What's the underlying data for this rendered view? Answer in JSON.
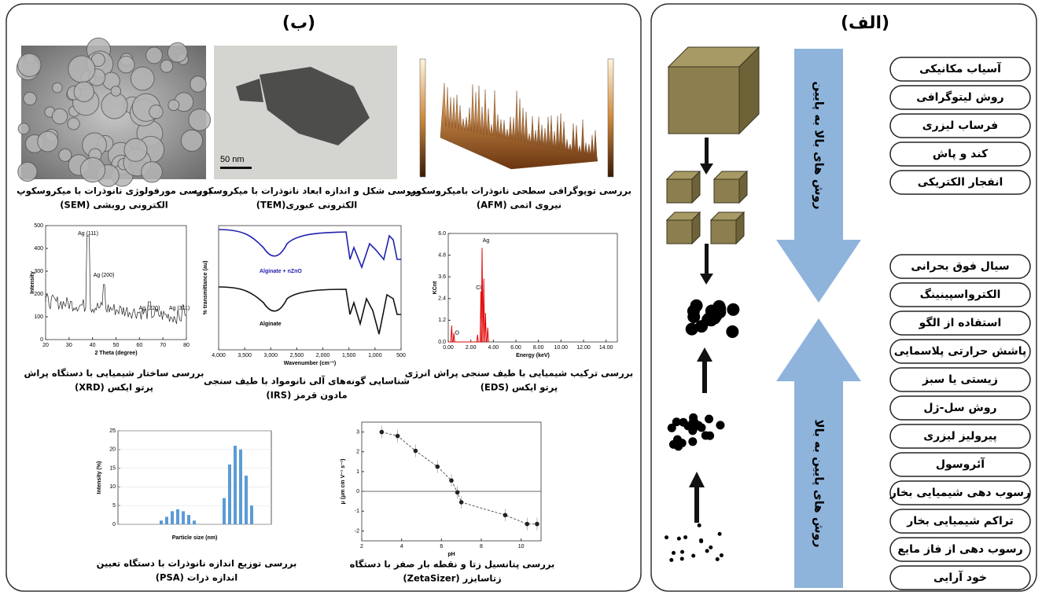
{
  "panel_a": {
    "title": "(الف)",
    "top_down_label": "روش های بالا به پایین",
    "bottom_up_label": "روش های پایین به بالا",
    "top_down_methods": [
      "آسیاب مکانیکی",
      "روش لیتوگرافی",
      "فرساب لیزری",
      "کند و پاش",
      "انفجار الکتریکی"
    ],
    "bottom_up_methods": [
      "سیال فوق بحرانی",
      "الکترواسپینینگ",
      "استفاده از الگو",
      "پاشش حرارتی پلاسمایی",
      "زیستی یا سبز",
      "روش سل-ژل",
      "پیرولیز لیزری",
      "آئروسول",
      "رسوب دهی شیمیایی بخار",
      "تراکم شیمیایی بخار",
      "رسوب دهی از فاز مایع",
      "خود آرایی"
    ]
  },
  "panel_b": {
    "title": "(ب)",
    "sem": {
      "caption": [
        "بررسی مورفولوژی نانوذرات با میکروسکوپ",
        "الکترونی روبشی (SEM)"
      ]
    },
    "tem": {
      "caption": [
        "بررسی شکل و اندازه ابعاد نانوذرات با میکروسکوپ",
        "الکترونی عبوری(TEM)"
      ],
      "scale_bar": "50 nm"
    },
    "afm": {
      "caption": [
        "بررسی توپوگرافی سطحی نانوذرات بامیکروسکوپ",
        "نیروی اتمی (AFM)"
      ]
    },
    "xrd": {
      "caption": [
        "بررسی ساختار شیمیایی با دستگاه پراش",
        "پرتو ایکس (XRD)"
      ],
      "x_label": "2 Theta (degree)",
      "y_label": "Intensity",
      "peak_labels": [
        "Ag (111)",
        "Ag (200)",
        "Ag (220)",
        "Ag (311)"
      ],
      "xlim": [
        20,
        80
      ],
      "ylim": [
        0,
        500
      ],
      "xticks": [
        20,
        30,
        40,
        50,
        60,
        70,
        80
      ],
      "yticks": [
        0,
        100,
        200,
        300,
        400,
        500
      ]
    },
    "irs": {
      "caption": [
        "شناسایی گونه‌های آلی نانومواد با طیف سنجی",
        "مادون قرمز (IRS)"
      ],
      "x_label": "Wavenumber (cm⁻¹)",
      "y_label": "% transmittance (au)",
      "curve_labels": [
        "Alginate + nZnO",
        "Alginate"
      ],
      "xlim": [
        4000,
        500
      ],
      "xticks": [
        {
          "value": 4000,
          "label": "4,000"
        },
        {
          "value": 3500,
          "label": "3,500"
        },
        {
          "value": 3000,
          "label": "3,000"
        },
        {
          "value": 2500,
          "label": "2,500"
        },
        {
          "value": 2000,
          "label": "2,000"
        },
        {
          "value": 1500,
          "label": "1,500"
        },
        {
          "value": 1000,
          "label": "1,000"
        },
        500
      ]
    },
    "eds": {
      "caption": [
        "بررسی ترکیب شیمیایی با طیف سنجی پراش انرژی",
        "پرتو ایکس (EDS)"
      ],
      "x_label": "Energy (keV)",
      "y_label": "KCnt",
      "peak_labels": [
        "Ag",
        "Cl",
        "O"
      ],
      "xlim": [
        0,
        15
      ],
      "ylim": [
        0,
        6
      ],
      "xticks": [
        {
          "value": 0,
          "label": "0.00"
        },
        {
          "value": 2,
          "label": "2.00"
        },
        {
          "value": 4,
          "label": "4.00"
        },
        {
          "value": 6,
          "label": "6.00"
        },
        {
          "value": 8,
          "label": "8.00"
        },
        {
          "value": 10,
          "label": "10.00"
        },
        {
          "value": 12,
          "label": "12.00"
        },
        {
          "value": 14,
          "label": "14.00"
        }
      ],
      "yticks": [
        {
          "value": 0,
          "label": "0.0"
        },
        1.2,
        2.4,
        3.6,
        4.8,
        {
          "value": 6,
          "label": "6.0"
        }
      ]
    },
    "psa": {
      "caption": [
        "بررسی توزیع اندازه نانوذرات با دستگاه تعیین",
        "اندازه ذرات (PSA)"
      ],
      "x_label": "Particle size (nm)",
      "y_label": "Intensity (%)",
      "values": [
        1,
        2,
        3.5,
        4,
        3.5,
        2.5,
        1,
        7,
        16,
        21,
        20,
        13,
        5
      ],
      "ylim": [
        0,
        25
      ],
      "yticks": [
        0,
        5,
        10,
        15,
        20,
        25
      ]
    },
    "zeta": {
      "caption": [
        "بررسی پتانسیل زتا و نقطه بار صفر با دستگاه",
        "زتاسایزر (ZetaSizer)"
      ],
      "x_label": "pH",
      "y_label": "μ (μm cm V⁻¹ s⁻¹)",
      "x": [
        3,
        3.8,
        4.7,
        5.8,
        6.5,
        6.8,
        7,
        9.2,
        10.3,
        10.8
      ],
      "y": [
        3,
        2.8,
        2.05,
        1.25,
        0.55,
        -0.05,
        -0.55,
        -1.2,
        -1.65,
        -1.65
      ],
      "xlim": [
        2,
        11
      ],
      "ylim": [
        -2.5,
        3.5
      ],
      "xticks": [
        2,
        4,
        6,
        8,
        10
      ],
      "yticks": [
        -2,
        -1,
        0,
        1,
        2,
        3
      ]
    }
  }
}
